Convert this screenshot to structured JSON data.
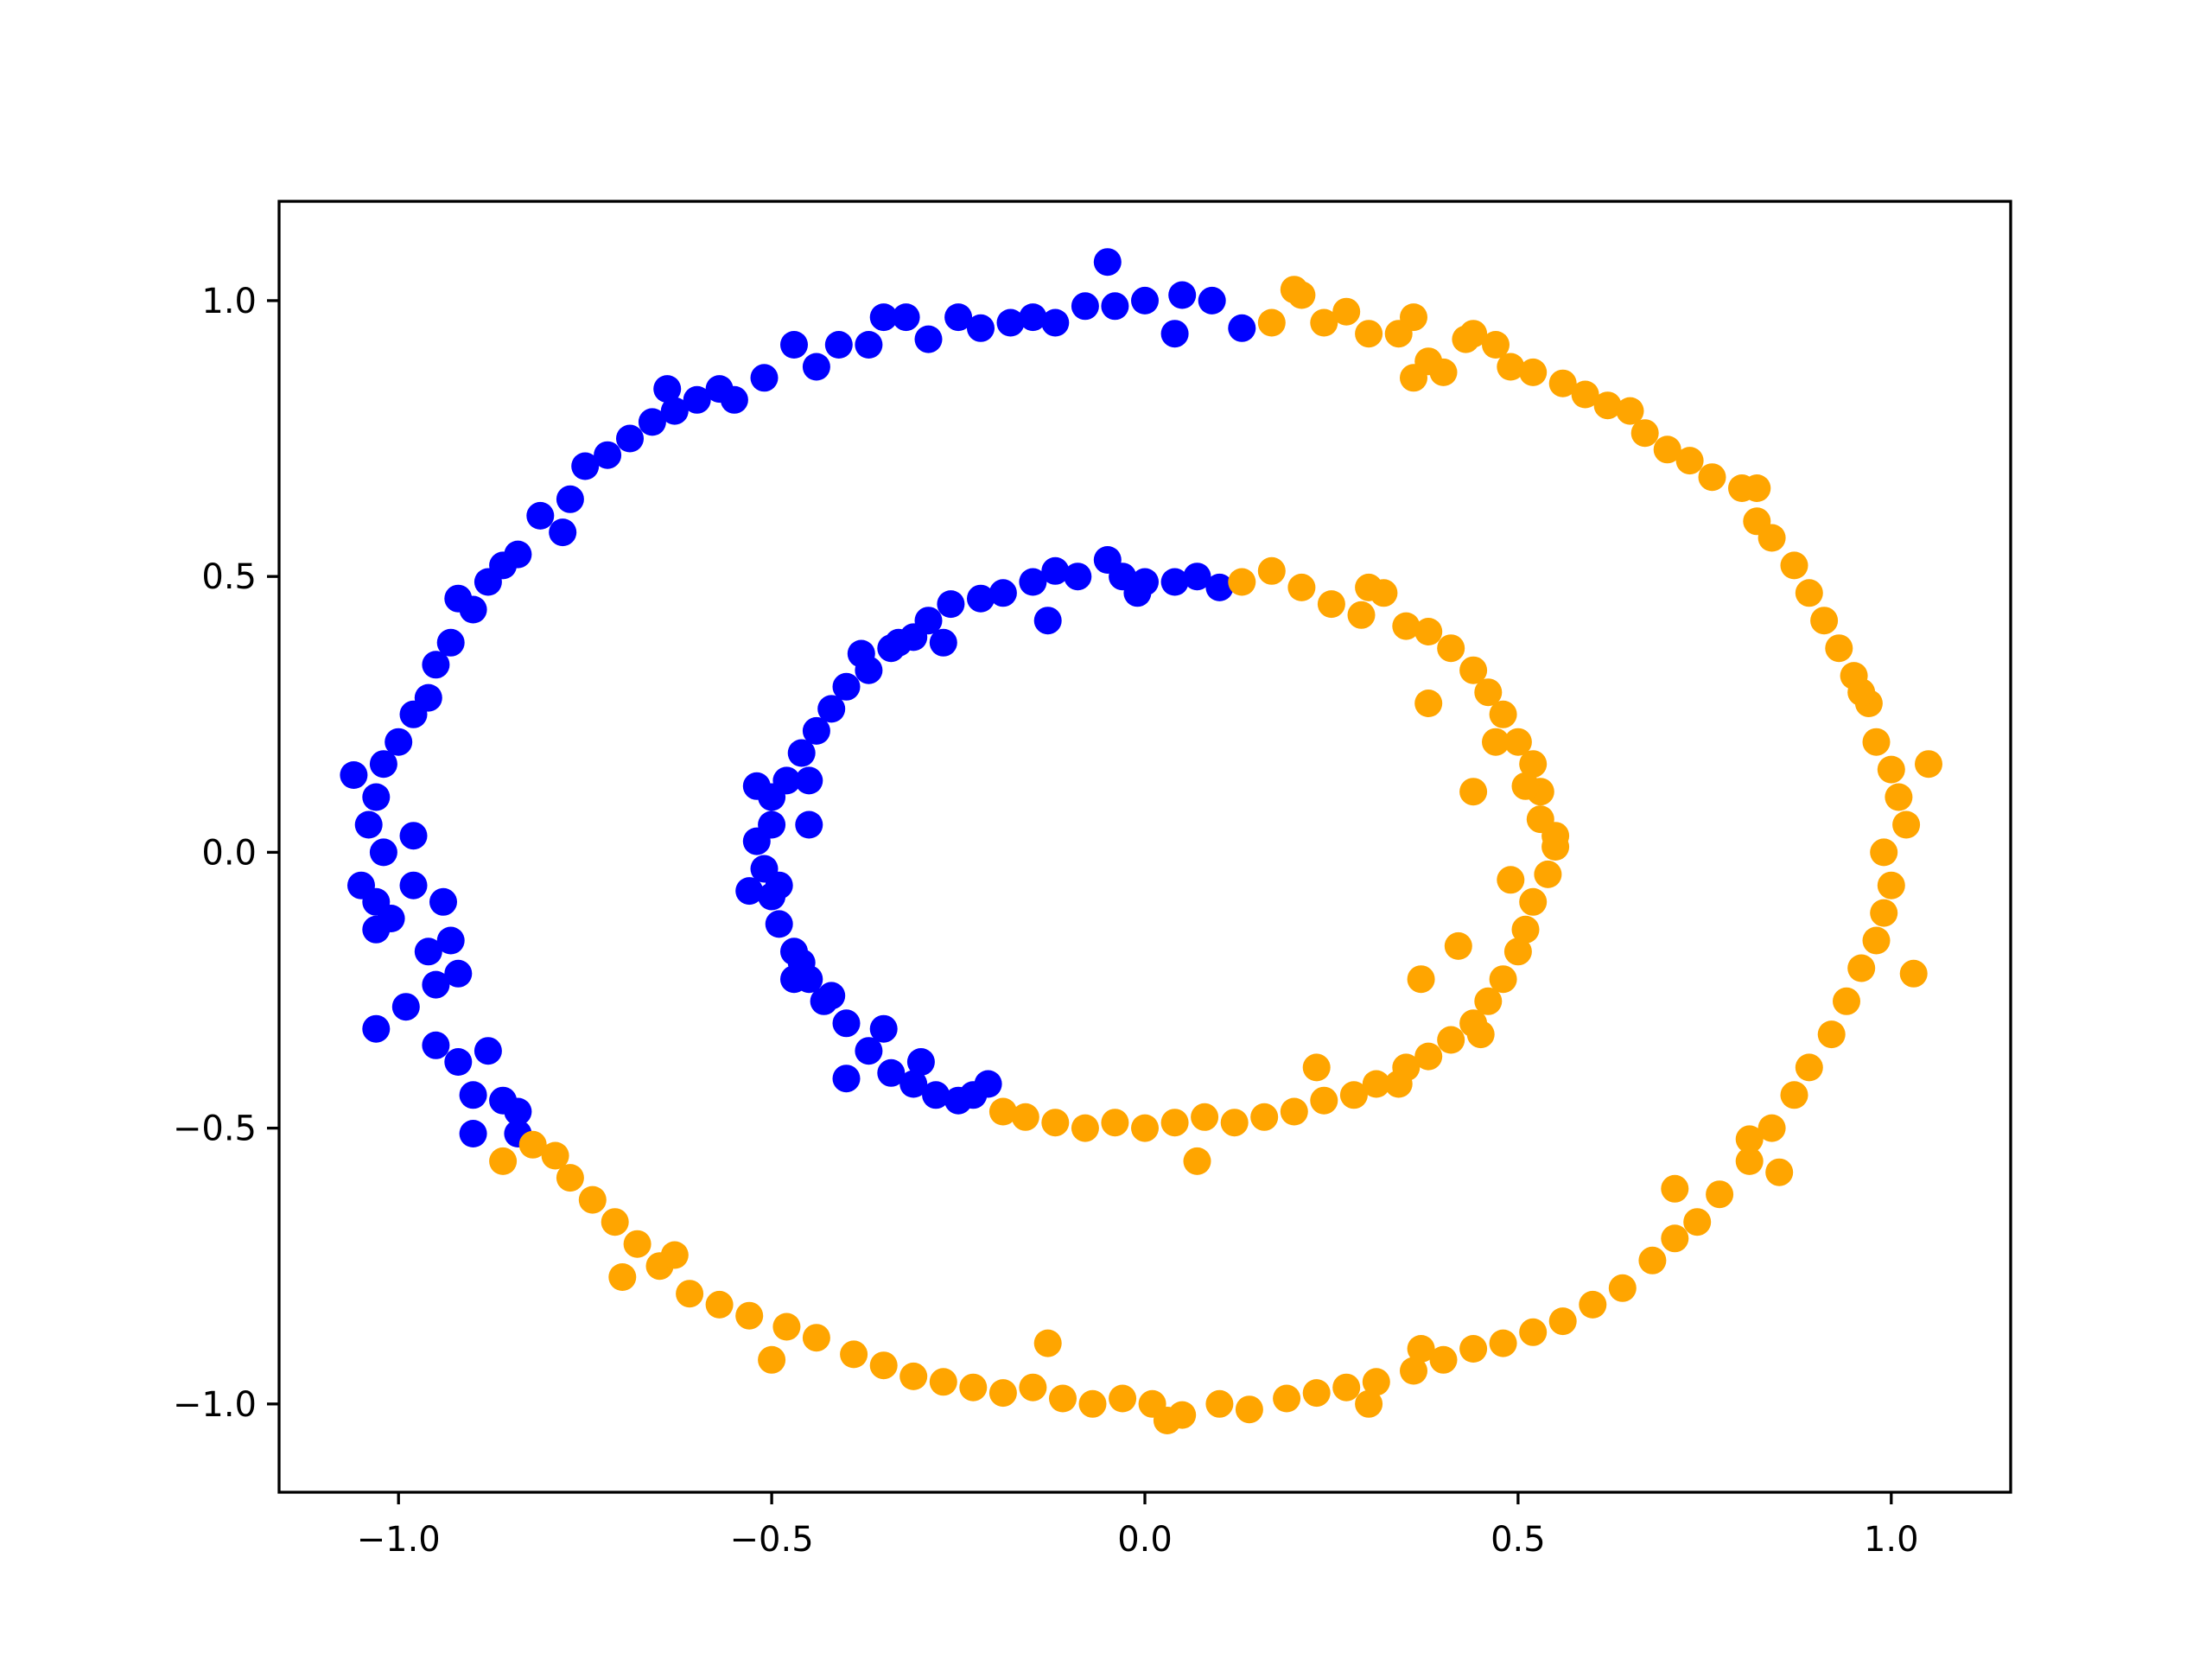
{
  "chart_data": {
    "type": "scatter",
    "title": "",
    "xlabel": "",
    "ylabel": "",
    "xlim": [
      -1.16,
      1.16
    ],
    "ylim": [
      -1.16,
      1.18
    ],
    "grid": false,
    "legend": "none",
    "xticks": [
      -1.0,
      -0.5,
      0.0,
      0.5,
      1.0
    ],
    "yticks": [
      -1.0,
      -0.5,
      0.0,
      0.5,
      1.0
    ],
    "xtick_labels": [
      "−1.0",
      "−0.5",
      "0.0",
      "0.5",
      "1.0"
    ],
    "ytick_labels": [
      "−1.0",
      "−0.5",
      "0.0",
      "0.5",
      "1.0"
    ],
    "marker_colors": {
      "blue": "#0000ff",
      "orange": "#ffa500"
    },
    "series": [
      {
        "color": "#0000ff",
        "points": [
          [
            0.13,
            0.95
          ],
          [
            0.09,
            1.0
          ],
          [
            0.05,
            1.01
          ],
          [
            0.04,
            0.94
          ],
          [
            0.0,
            1.0
          ],
          [
            -0.04,
            0.99
          ],
          [
            -0.05,
            1.07
          ],
          [
            -0.08,
            0.99
          ],
          [
            -0.12,
            0.96
          ],
          [
            -0.15,
            0.97
          ],
          [
            -0.18,
            0.96
          ],
          [
            -0.22,
            0.95
          ],
          [
            -0.25,
            0.97
          ],
          [
            -0.29,
            0.93
          ],
          [
            -0.32,
            0.97
          ],
          [
            -0.35,
            0.97
          ],
          [
            -0.37,
            0.92
          ],
          [
            -0.41,
            0.92
          ],
          [
            -0.44,
            0.88
          ],
          [
            -0.47,
            0.92
          ],
          [
            -0.51,
            0.86
          ],
          [
            -0.55,
            0.82
          ],
          [
            -0.57,
            0.84
          ],
          [
            -0.6,
            0.82
          ],
          [
            -0.63,
            0.8
          ],
          [
            -0.64,
            0.84
          ],
          [
            -0.66,
            0.78
          ],
          [
            -0.69,
            0.75
          ],
          [
            -0.72,
            0.72
          ],
          [
            -0.75,
            0.7
          ],
          [
            -0.77,
            0.64
          ],
          [
            -0.78,
            0.58
          ],
          [
            -0.81,
            0.61
          ],
          [
            -0.84,
            0.54
          ],
          [
            -0.86,
            0.52
          ],
          [
            -0.88,
            0.49
          ],
          [
            -0.9,
            0.44
          ],
          [
            -0.92,
            0.46
          ],
          [
            -0.93,
            0.38
          ],
          [
            -0.95,
            0.34
          ],
          [
            -0.96,
            0.28
          ],
          [
            -0.98,
            0.25
          ],
          [
            -1.0,
            0.2
          ],
          [
            -1.02,
            0.16
          ],
          [
            -1.03,
            0.1
          ],
          [
            -1.06,
            0.14
          ],
          [
            -1.04,
            0.05
          ],
          [
            -1.02,
            0.0
          ],
          [
            -0.98,
            0.03
          ],
          [
            -1.05,
            -0.06
          ],
          [
            -1.03,
            -0.09
          ],
          [
            -1.01,
            -0.12
          ],
          [
            -0.98,
            -0.06
          ],
          [
            -0.94,
            -0.09
          ],
          [
            -1.03,
            -0.14
          ],
          [
            -0.96,
            -0.18
          ],
          [
            -0.93,
            -0.16
          ],
          [
            -0.95,
            -0.24
          ],
          [
            -0.92,
            -0.22
          ],
          [
            -0.99,
            -0.28
          ],
          [
            -1.03,
            -0.32
          ],
          [
            -0.95,
            -0.35
          ],
          [
            -0.92,
            -0.38
          ],
          [
            -0.88,
            -0.36
          ],
          [
            -0.9,
            -0.44
          ],
          [
            -0.86,
            -0.45
          ],
          [
            -0.84,
            -0.47
          ],
          [
            -0.9,
            -0.51
          ],
          [
            -0.84,
            -0.51
          ],
          [
            0.1,
            0.48
          ],
          [
            0.07,
            0.5
          ],
          [
            0.04,
            0.49
          ],
          [
            0.0,
            0.49
          ],
          [
            -0.03,
            0.5
          ],
          [
            -0.05,
            0.53
          ],
          [
            -0.09,
            0.5
          ],
          [
            -0.12,
            0.51
          ],
          [
            -0.15,
            0.49
          ],
          [
            -0.19,
            0.47
          ],
          [
            -0.22,
            0.46
          ],
          [
            -0.26,
            0.45
          ],
          [
            -0.29,
            0.42
          ],
          [
            -0.31,
            0.39
          ],
          [
            -0.34,
            0.37
          ],
          [
            -0.37,
            0.33
          ],
          [
            -0.4,
            0.3
          ],
          [
            -0.42,
            0.26
          ],
          [
            -0.44,
            0.22
          ],
          [
            -0.46,
            0.18
          ],
          [
            -0.48,
            0.13
          ],
          [
            -0.5,
            0.1
          ],
          [
            -0.5,
            0.05
          ],
          [
            -0.52,
            0.02
          ],
          [
            -0.51,
            -0.03
          ],
          [
            -0.5,
            -0.08
          ],
          [
            -0.49,
            -0.13
          ],
          [
            -0.47,
            -0.18
          ],
          [
            -0.45,
            -0.23
          ],
          [
            -0.43,
            -0.27
          ],
          [
            -0.4,
            -0.31
          ],
          [
            -0.37,
            -0.36
          ],
          [
            -0.34,
            -0.4
          ],
          [
            -0.31,
            -0.42
          ],
          [
            -0.28,
            -0.44
          ],
          [
            -0.25,
            -0.45
          ],
          [
            -0.21,
            -0.42
          ],
          [
            -0.4,
            -0.41
          ],
          [
            -0.46,
            -0.2
          ],
          [
            -0.53,
            -0.07
          ],
          [
            -0.45,
            0.05
          ],
          [
            -0.38,
            0.36
          ],
          [
            -0.27,
            0.38
          ],
          [
            -0.13,
            0.42
          ],
          [
            -0.01,
            0.47
          ],
          [
            -0.45,
            0.13
          ],
          [
            -0.35,
            -0.32
          ],
          [
            -0.42,
            -0.26
          ],
          [
            -0.33,
            0.38
          ],
          [
            -0.49,
            -0.06
          ],
          [
            -0.52,
            0.12
          ],
          [
            -0.23,
            -0.44
          ],
          [
            -0.3,
            -0.38
          ],
          [
            -0.47,
            -0.23
          ]
        ]
      },
      {
        "color": "#ffa500",
        "points": [
          [
            0.17,
            0.96
          ],
          [
            0.21,
            1.01
          ],
          [
            0.24,
            0.96
          ],
          [
            0.27,
            0.98
          ],
          [
            0.3,
            0.94
          ],
          [
            0.34,
            0.94
          ],
          [
            0.36,
            0.97
          ],
          [
            0.38,
            0.89
          ],
          [
            0.4,
            0.87
          ],
          [
            0.43,
            0.93
          ],
          [
            0.47,
            0.92
          ],
          [
            0.49,
            0.88
          ],
          [
            0.52,
            0.87
          ],
          [
            0.56,
            0.85
          ],
          [
            0.59,
            0.83
          ],
          [
            0.62,
            0.81
          ],
          [
            0.65,
            0.8
          ],
          [
            0.67,
            0.76
          ],
          [
            0.7,
            0.73
          ],
          [
            0.73,
            0.71
          ],
          [
            0.76,
            0.68
          ],
          [
            0.8,
            0.66
          ],
          [
            0.82,
            0.6
          ],
          [
            0.84,
            0.57
          ],
          [
            0.87,
            0.52
          ],
          [
            0.89,
            0.47
          ],
          [
            0.91,
            0.42
          ],
          [
            0.93,
            0.37
          ],
          [
            0.95,
            0.32
          ],
          [
            0.97,
            0.27
          ],
          [
            0.98,
            0.2
          ],
          [
            1.0,
            0.15
          ],
          [
            1.01,
            0.1
          ],
          [
            1.02,
            0.05
          ],
          [
            0.99,
            0.0
          ],
          [
            1.0,
            -0.06
          ],
          [
            0.99,
            -0.11
          ],
          [
            0.98,
            -0.16
          ],
          [
            0.96,
            -0.21
          ],
          [
            0.94,
            -0.27
          ],
          [
            0.92,
            -0.33
          ],
          [
            0.89,
            -0.39
          ],
          [
            0.87,
            -0.44
          ],
          [
            0.84,
            -0.5
          ],
          [
            0.81,
            -0.56
          ],
          [
            0.77,
            -0.62
          ],
          [
            0.74,
            -0.67
          ],
          [
            0.71,
            -0.7
          ],
          [
            0.68,
            -0.74
          ],
          [
            0.64,
            -0.79
          ],
          [
            0.6,
            -0.82
          ],
          [
            0.56,
            -0.85
          ],
          [
            0.52,
            -0.87
          ],
          [
            0.48,
            -0.89
          ],
          [
            0.44,
            -0.9
          ],
          [
            0.4,
            -0.92
          ],
          [
            0.36,
            -0.94
          ],
          [
            0.31,
            -0.96
          ],
          [
            0.27,
            -0.97
          ],
          [
            0.23,
            -0.98
          ],
          [
            0.19,
            -0.99
          ],
          [
            0.14,
            -1.01
          ],
          [
            0.1,
            -1.0
          ],
          [
            0.05,
            -1.02
          ],
          [
            0.01,
            -1.0
          ],
          [
            -0.03,
            -0.99
          ],
          [
            -0.07,
            -1.0
          ],
          [
            -0.11,
            -0.99
          ],
          [
            -0.15,
            -0.97
          ],
          [
            -0.19,
            -0.98
          ],
          [
            -0.23,
            -0.97
          ],
          [
            -0.27,
            -0.96
          ],
          [
            -0.31,
            -0.95
          ],
          [
            -0.35,
            -0.93
          ],
          [
            -0.39,
            -0.91
          ],
          [
            -0.44,
            -0.88
          ],
          [
            -0.48,
            -0.86
          ],
          [
            -0.53,
            -0.84
          ],
          [
            -0.57,
            -0.82
          ],
          [
            -0.61,
            -0.8
          ],
          [
            -0.65,
            -0.75
          ],
          [
            -0.68,
            -0.71
          ],
          [
            -0.71,
            -0.67
          ],
          [
            -0.74,
            -0.63
          ],
          [
            -0.77,
            -0.59
          ],
          [
            -0.79,
            -0.55
          ],
          [
            -0.82,
            -0.53
          ],
          [
            -0.86,
            -0.56
          ],
          [
            -0.7,
            -0.77
          ],
          [
            -0.63,
            -0.73
          ],
          [
            -0.5,
            -0.92
          ],
          [
            -0.13,
            -0.89
          ],
          [
            0.03,
            -1.03
          ],
          [
            0.3,
            -1.0
          ],
          [
            0.37,
            -0.9
          ],
          [
            0.71,
            -0.61
          ],
          [
            0.85,
            -0.58
          ],
          [
            0.82,
            0.66
          ],
          [
            0.96,
            0.29
          ],
          [
            1.05,
            0.16
          ],
          [
            1.03,
            -0.22
          ],
          [
            0.81,
            -0.52
          ],
          [
            0.36,
            0.86
          ],
          [
            0.2,
            1.02
          ],
          [
            0.44,
            0.94
          ],
          [
            0.13,
            0.49
          ],
          [
            0.17,
            0.51
          ],
          [
            0.21,
            0.48
          ],
          [
            0.25,
            0.45
          ],
          [
            0.29,
            0.43
          ],
          [
            0.32,
            0.47
          ],
          [
            0.35,
            0.41
          ],
          [
            0.38,
            0.4
          ],
          [
            0.41,
            0.37
          ],
          [
            0.44,
            0.33
          ],
          [
            0.46,
            0.29
          ],
          [
            0.48,
            0.25
          ],
          [
            0.5,
            0.2
          ],
          [
            0.52,
            0.16
          ],
          [
            0.53,
            0.11
          ],
          [
            0.53,
            0.06
          ],
          [
            0.55,
            0.01
          ],
          [
            0.54,
            -0.04
          ],
          [
            0.52,
            -0.09
          ],
          [
            0.51,
            -0.14
          ],
          [
            0.5,
            -0.18
          ],
          [
            0.48,
            -0.23
          ],
          [
            0.46,
            -0.27
          ],
          [
            0.44,
            -0.31
          ],
          [
            0.41,
            -0.34
          ],
          [
            0.38,
            -0.37
          ],
          [
            0.35,
            -0.39
          ],
          [
            0.31,
            -0.42
          ],
          [
            0.28,
            -0.44
          ],
          [
            0.24,
            -0.45
          ],
          [
            0.2,
            -0.47
          ],
          [
            0.16,
            -0.48
          ],
          [
            0.12,
            -0.49
          ],
          [
            0.08,
            -0.48
          ],
          [
            0.04,
            -0.49
          ],
          [
            0.0,
            -0.5
          ],
          [
            -0.04,
            -0.49
          ],
          [
            -0.08,
            -0.5
          ],
          [
            -0.12,
            -0.49
          ],
          [
            -0.16,
            -0.48
          ],
          [
            -0.19,
            -0.47
          ],
          [
            0.07,
            -0.56
          ],
          [
            0.3,
            0.48
          ],
          [
            0.38,
            0.27
          ],
          [
            0.42,
            -0.17
          ],
          [
            0.37,
            -0.23
          ],
          [
            0.55,
            0.03
          ],
          [
            0.47,
            0.2
          ],
          [
            0.23,
            -0.39
          ],
          [
            0.45,
            -0.33
          ],
          [
            0.51,
            0.12
          ],
          [
            0.34,
            -0.42
          ],
          [
            0.44,
            0.11
          ],
          [
            0.49,
            -0.05
          ]
        ]
      }
    ]
  }
}
